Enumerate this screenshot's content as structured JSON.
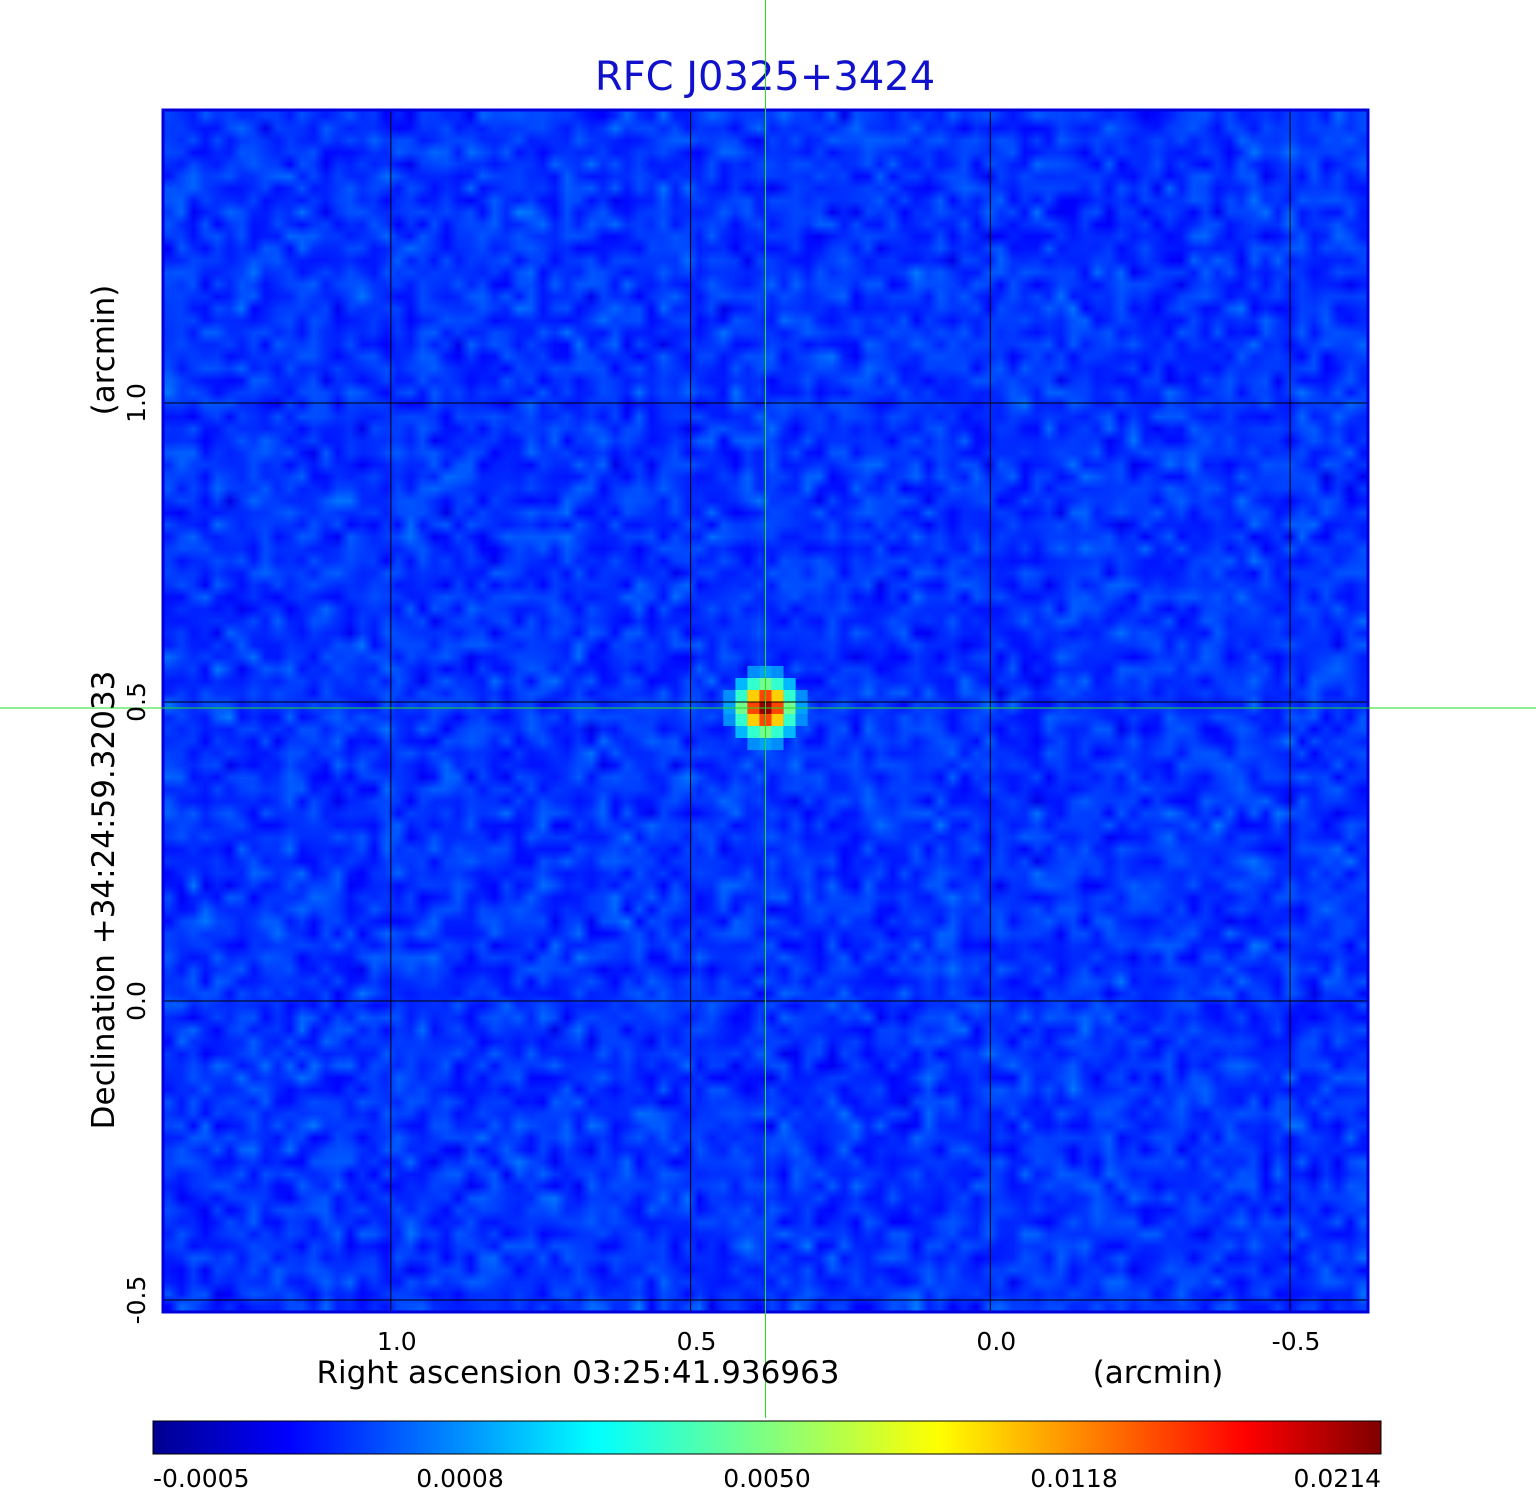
{
  "chart_data": {
    "type": "heatmap",
    "title": "RFC J0325+3424",
    "xlabel": "Right ascension  03:25:41.936963",
    "xunit": "(arcmin)",
    "ylabel": "Declination  +34:24:59.32033",
    "yunit": "(arcmin)",
    "xlim": [
      1.38,
      -0.63
    ],
    "ylim": [
      -0.52,
      1.49
    ],
    "x_ticks": [
      {
        "value": 1.0,
        "label": "1.0"
      },
      {
        "value": 0.5,
        "label": "0.5"
      },
      {
        "value": 0.0,
        "label": "0.0"
      },
      {
        "value": -0.5,
        "label": "-0.5"
      }
    ],
    "y_ticks": [
      {
        "value": 1.0,
        "label": "1.0"
      },
      {
        "value": 0.5,
        "label": "0.5"
      },
      {
        "value": 0.0,
        "label": "0.0"
      },
      {
        "value": -0.5,
        "label": "-0.5"
      }
    ],
    "grid": true,
    "crosshair": {
      "x": 0.375,
      "y": 0.49
    },
    "source_peak": {
      "x": 0.375,
      "y": 0.49,
      "value": 0.0214
    },
    "colormap": "jet",
    "colorbar": {
      "placement": "bottom",
      "labels": [
        "-0.0005",
        "0.0008",
        "0.0050",
        "0.0118",
        "0.0214"
      ]
    }
  }
}
